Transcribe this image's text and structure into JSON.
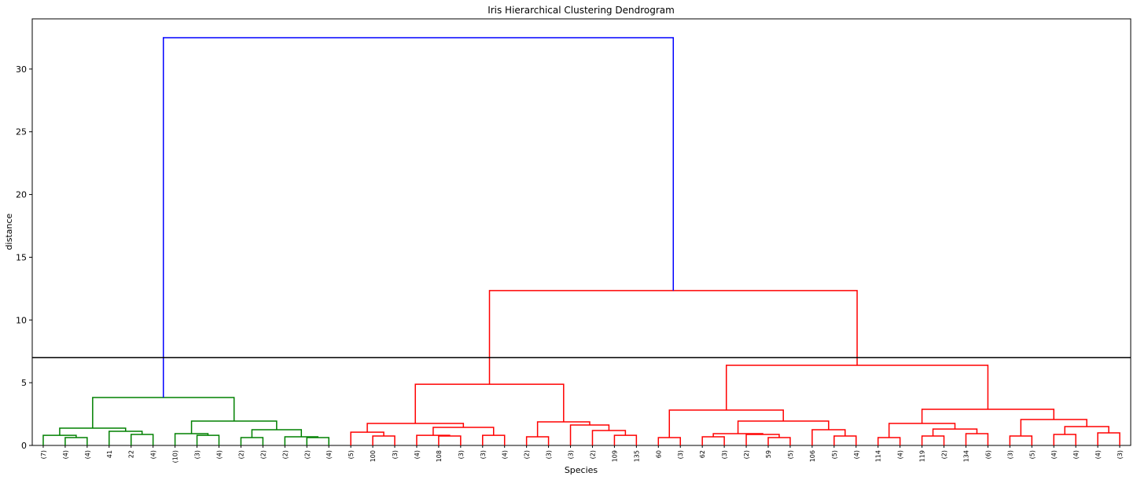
{
  "chart_data": {
    "type": "dendrogram",
    "title": "Iris Hierarchical Clustering Dendrogram",
    "x_label": "Species",
    "y_label": "distance",
    "ylim": [
      0,
      34
    ],
    "yticks": [
      0,
      5,
      10,
      15,
      20,
      25,
      30
    ],
    "threshold": 7,
    "threshold_color": "#000000",
    "tree": {
      "height": 32.5,
      "color": "#0000ff",
      "children": [
        {
          "height": 3.82,
          "color": "#008000",
          "children": [
            {
              "height": 1.38,
              "children": [
                {
                  "height": 0.81,
                  "children": [
                    {
                      "label": "(7)"
                    },
                    {
                      "height": 0.63,
                      "children": [
                        {
                          "label": "(4)"
                        },
                        {
                          "label": "(4)"
                        }
                      ]
                    }
                  ]
                },
                {
                  "height": 1.13,
                  "children": [
                    {
                      "label": "41"
                    },
                    {
                      "height": 0.88,
                      "children": [
                        {
                          "label": "22"
                        },
                        {
                          "label": "(4)"
                        }
                      ]
                    }
                  ]
                }
              ]
            },
            {
              "height": 1.94,
              "children": [
                {
                  "height": 0.94,
                  "children": [
                    {
                      "label": "(10)"
                    },
                    {
                      "height": 0.81,
                      "children": [
                        {
                          "label": "(3)"
                        },
                        {
                          "label": "(4)"
                        }
                      ]
                    }
                  ]
                },
                {
                  "height": 1.25,
                  "children": [
                    {
                      "height": 0.63,
                      "children": [
                        {
                          "label": "(2)"
                        },
                        {
                          "label": "(2)"
                        }
                      ]
                    },
                    {
                      "height": 0.69,
                      "children": [
                        {
                          "label": "(2)"
                        },
                        {
                          "height": 0.63,
                          "children": [
                            {
                              "label": "(2)"
                            },
                            {
                              "label": "(4)"
                            }
                          ]
                        }
                      ]
                    }
                  ]
                }
              ]
            }
          ]
        },
        {
          "height": 12.34,
          "color": "#ff0000",
          "children": [
            {
              "height": 4.88,
              "children": [
                {
                  "height": 1.75,
                  "children": [
                    {
                      "height": 1.06,
                      "children": [
                        {
                          "label": "(5)"
                        },
                        {
                          "height": 0.75,
                          "children": [
                            {
                              "label": "100"
                            },
                            {
                              "label": "(3)"
                            }
                          ]
                        }
                      ]
                    },
                    {
                      "height": 1.44,
                      "children": [
                        {
                          "height": 0.81,
                          "children": [
                            {
                              "label": "(4)"
                            },
                            {
                              "height": 0.75,
                              "children": [
                                {
                                  "label": "108"
                                },
                                {
                                  "label": "(3)"
                                }
                              ]
                            }
                          ]
                        },
                        {
                          "height": 0.81,
                          "children": [
                            {
                              "label": "(3)"
                            },
                            {
                              "label": "(4)"
                            }
                          ]
                        }
                      ]
                    }
                  ]
                },
                {
                  "height": 1.88,
                  "children": [
                    {
                      "height": 0.69,
                      "children": [
                        {
                          "label": "(2)"
                        },
                        {
                          "label": "(3)"
                        }
                      ]
                    },
                    {
                      "height": 1.63,
                      "children": [
                        {
                          "label": "(3)"
                        },
                        {
                          "height": 1.19,
                          "children": [
                            {
                              "label": "(2)"
                            },
                            {
                              "height": 0.81,
                              "children": [
                                {
                                  "label": "109"
                                },
                                {
                                  "label": "135"
                                }
                              ]
                            }
                          ]
                        }
                      ]
                    }
                  ]
                }
              ]
            },
            {
              "height": 6.39,
              "children": [
                {
                  "height": 2.82,
                  "children": [
                    {
                      "height": 0.63,
                      "children": [
                        {
                          "label": "60"
                        },
                        {
                          "label": "(3)"
                        }
                      ]
                    },
                    {
                      "height": 1.94,
                      "children": [
                        {
                          "height": 0.94,
                          "children": [
                            {
                              "height": 0.69,
                              "children": [
                                {
                                  "label": "62"
                                },
                                {
                                  "label": "(3)"
                                }
                              ]
                            },
                            {
                              "height": 0.88,
                              "children": [
                                {
                                  "label": "(2)"
                                },
                                {
                                  "height": 0.63,
                                  "children": [
                                    {
                                      "label": "59"
                                    },
                                    {
                                      "label": "(5)"
                                    }
                                  ]
                                }
                              ]
                            }
                          ]
                        },
                        {
                          "height": 1.25,
                          "children": [
                            {
                              "label": "106"
                            },
                            {
                              "height": 0.75,
                              "children": [
                                {
                                  "label": "(5)"
                                },
                                {
                                  "label": "(4)"
                                }
                              ]
                            }
                          ]
                        }
                      ]
                    }
                  ]
                },
                {
                  "height": 2.88,
                  "children": [
                    {
                      "height": 1.75,
                      "children": [
                        {
                          "height": 0.63,
                          "children": [
                            {
                              "label": "114"
                            },
                            {
                              "label": "(4)"
                            }
                          ]
                        },
                        {
                          "height": 1.31,
                          "children": [
                            {
                              "height": 0.75,
                              "children": [
                                {
                                  "label": "119"
                                },
                                {
                                  "label": "(2)"
                                }
                              ]
                            },
                            {
                              "height": 0.94,
                              "children": [
                                {
                                  "label": "134"
                                },
                                {
                                  "label": "(6)"
                                }
                              ]
                            }
                          ]
                        }
                      ]
                    },
                    {
                      "height": 2.07,
                      "children": [
                        {
                          "height": 0.75,
                          "children": [
                            {
                              "label": "(3)"
                            },
                            {
                              "label": "(5)"
                            }
                          ]
                        },
                        {
                          "height": 1.5,
                          "children": [
                            {
                              "height": 0.88,
                              "children": [
                                {
                                  "label": "(4)"
                                },
                                {
                                  "label": "(4)"
                                }
                              ]
                            },
                            {
                              "height": 1.0,
                              "children": [
                                {
                                  "label": "(4)"
                                },
                                {
                                  "label": "(3)"
                                }
                              ]
                            }
                          ]
                        }
                      ]
                    }
                  ]
                }
              ]
            }
          ]
        }
      ]
    }
  }
}
